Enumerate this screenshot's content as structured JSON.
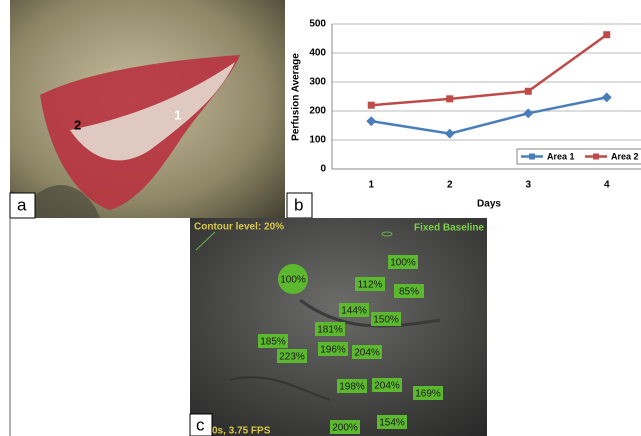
{
  "chart_data": {
    "type": "line",
    "x_label": "Days",
    "y_label": "Perfusion Average",
    "categories": [
      "1",
      "2",
      "3",
      "4"
    ],
    "series": [
      {
        "name": "Area 1",
        "color": "#4a7ebb",
        "values": [
          165,
          122,
          192,
          247
        ]
      },
      {
        "name": "Area 2",
        "color": "#be4b48",
        "values": [
          220,
          242,
          268,
          463
        ]
      }
    ],
    "ylim": [
      0,
      500
    ],
    "yticks": [
      0,
      100,
      200,
      300,
      400,
      500
    ],
    "grid": true,
    "legend": "bottom-right"
  },
  "photo": {
    "label": "a",
    "annotations": [
      "2",
      "1"
    ]
  },
  "chart_panel": {
    "label": "b"
  },
  "perfusion": {
    "label": "c",
    "header": "Contour level: 20%",
    "mode": "Fixed Baseline",
    "footer": "0s, 3.75 FPS",
    "regions": [
      "100%",
      "100%",
      "112%",
      "85%",
      "144%",
      "150%",
      "181%",
      "185%",
      "196%",
      "204%",
      "223%",
      "198%",
      "204%",
      "169%",
      "200%",
      "154%"
    ]
  }
}
